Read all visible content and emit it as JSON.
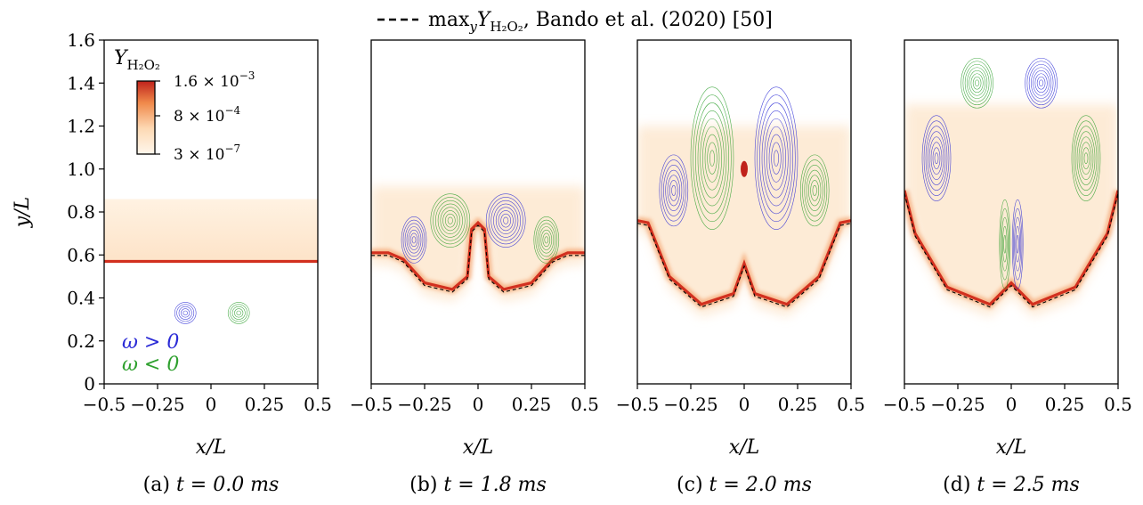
{
  "legend_top": {
    "label": "max",
    "label_sub_y": "y",
    "label_Y": "Y",
    "label_Y_sub": "H₂O₂",
    "label_tail": ",  Bando et al. (2020) [50]"
  },
  "colorbar": {
    "title_Y": "Y",
    "title_sub": "H₂O₂",
    "ticks": [
      {
        "mant": "1.6 × 10",
        "exp": "−3"
      },
      {
        "mant": "8 × 10",
        "exp": "−4"
      },
      {
        "mant": "3 × 10",
        "exp": "−7"
      }
    ],
    "colors": {
      "high": "#c0221b",
      "mid": "#f08a4b",
      "low": "#fff7ec"
    }
  },
  "vorticity_labels": {
    "pos": "ω > 0",
    "neg": "ω < 0",
    "pos_color": "#2b2bd6",
    "neg_color": "#2ea02e"
  },
  "axes": {
    "ylabel": "y/L",
    "xlabel": "x/L",
    "yticks": [
      "0",
      "0.2",
      "0.4",
      "0.6",
      "0.8",
      "1.0",
      "1.2",
      "1.4",
      "1.6"
    ],
    "xticks": [
      "−0.5",
      "−0.25",
      "0",
      "0.25",
      "0.5"
    ]
  },
  "panels": [
    {
      "tag": "(a)",
      "time": "t = 0.0 ms"
    },
    {
      "tag": "(b)",
      "time": "t = 1.8 ms"
    },
    {
      "tag": "(c)",
      "time": "t = 2.0 ms"
    },
    {
      "tag": "(d)",
      "time": "t = 2.5 ms"
    }
  ],
  "chart_data": [
    {
      "type": "heatmap",
      "panel": "(a)",
      "xlim": [
        -0.5,
        0.5
      ],
      "ylim": [
        0,
        1.6
      ],
      "flame_front": {
        "x": [
          -0.5,
          0.5
        ],
        "y": [
          0.57,
          0.57
        ]
      },
      "diffuse_region_top": 0.86,
      "vortices": [
        {
          "x": -0.12,
          "y": 0.33,
          "sign": "pos"
        },
        {
          "x": 0.13,
          "y": 0.33,
          "sign": "neg"
        }
      ]
    },
    {
      "type": "heatmap",
      "panel": "(b)",
      "xlim": [
        -0.5,
        0.5
      ],
      "ylim": [
        0,
        1.6
      ],
      "flame_front": {
        "x": [
          -0.5,
          -0.42,
          -0.35,
          -0.25,
          -0.12,
          -0.05,
          -0.03,
          0,
          0.03,
          0.05,
          0.12,
          0.25,
          0.35,
          0.42,
          0.5
        ],
        "y": [
          0.61,
          0.61,
          0.58,
          0.47,
          0.44,
          0.5,
          0.72,
          0.75,
          0.72,
          0.5,
          0.44,
          0.47,
          0.58,
          0.61,
          0.61
        ]
      },
      "diffuse_region_top": 0.92
    },
    {
      "type": "heatmap",
      "panel": "(c)",
      "xlim": [
        -0.5,
        0.5
      ],
      "ylim": [
        0,
        1.6
      ],
      "flame_front": {
        "x": [
          -0.5,
          -0.45,
          -0.35,
          -0.2,
          -0.05,
          0,
          0.05,
          0.2,
          0.35,
          0.45,
          0.5
        ],
        "y": [
          0.76,
          0.75,
          0.5,
          0.37,
          0.42,
          0.56,
          0.42,
          0.37,
          0.5,
          0.75,
          0.76
        ]
      },
      "hot_spot": {
        "x": 0,
        "y": 1.0
      },
      "diffuse_region_top": 1.2
    },
    {
      "type": "heatmap",
      "panel": "(d)",
      "xlim": [
        -0.5,
        0.5
      ],
      "ylim": [
        0,
        1.6
      ],
      "flame_front": {
        "x": [
          -0.5,
          -0.45,
          -0.3,
          -0.1,
          0,
          0.1,
          0.3,
          0.45,
          0.5
        ],
        "y": [
          0.9,
          0.7,
          0.45,
          0.37,
          0.47,
          0.37,
          0.45,
          0.7,
          0.9
        ]
      },
      "diffuse_region_top": 1.3
    }
  ]
}
